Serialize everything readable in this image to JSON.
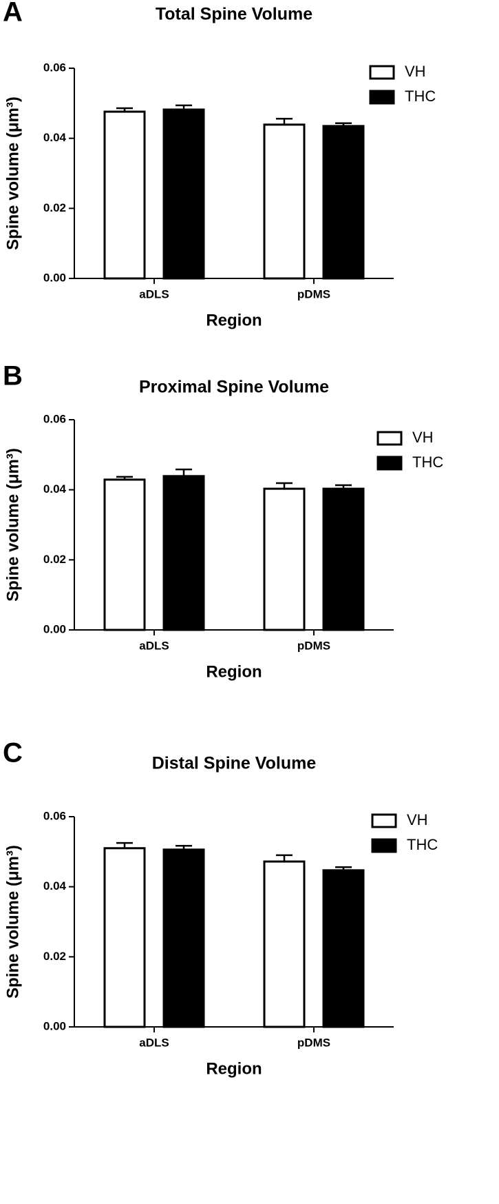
{
  "chart_data": [
    {
      "type": "bar",
      "panel": "A",
      "title": "Total Spine Volume",
      "y_label": "Spine volume (μm³)",
      "x_label": "Region",
      "categories": [
        "aDLS",
        "pDMS"
      ],
      "series": [
        {
          "name": "VH",
          "color": "#ffffff",
          "values": [
            0.0476,
            0.0439
          ],
          "errors": [
            0.001,
            0.0017
          ]
        },
        {
          "name": "THC",
          "color": "#000000",
          "values": [
            0.0482,
            0.0435
          ],
          "errors": [
            0.0012,
            0.0008
          ]
        }
      ],
      "ylim": [
        0,
        0.06
      ],
      "yticks": [
        {
          "value": 0,
          "label": "0.00"
        },
        0.02,
        0.04,
        0.06
      ],
      "legend": "top-right"
    },
    {
      "type": "bar",
      "panel": "B",
      "title": "Proximal  Spine Volume",
      "y_label": "Spine volume (μm³)",
      "x_label": "Region",
      "categories": [
        "aDLS",
        "pDMS"
      ],
      "series": [
        {
          "name": "VH",
          "color": "#ffffff",
          "values": [
            0.0429,
            0.0403
          ],
          "errors": [
            0.0008,
            0.0016
          ]
        },
        {
          "name": "THC",
          "color": "#000000",
          "values": [
            0.0439,
            0.0403
          ],
          "errors": [
            0.0019,
            0.001
          ]
        }
      ],
      "ylim": [
        0,
        0.06
      ],
      "yticks": [
        {
          "value": 0,
          "label": "0.00"
        },
        0.02,
        0.04,
        0.06
      ],
      "legend": "top-right"
    },
    {
      "type": "bar",
      "panel": "C",
      "title": "Distal Spine Volume",
      "y_label": "Spine volume (μm³)",
      "x_label": "Region",
      "categories": [
        "aDLS",
        "pDMS"
      ],
      "series": [
        {
          "name": "VH",
          "color": "#ffffff",
          "values": [
            0.051,
            0.0472
          ],
          "errors": [
            0.0015,
            0.0018
          ]
        },
        {
          "name": "THC",
          "color": "#000000",
          "values": [
            0.0506,
            0.0447
          ],
          "errors": [
            0.0011,
            0.0009
          ]
        }
      ],
      "ylim": [
        0,
        0.06
      ],
      "yticks": [
        {
          "value": 0,
          "label": "0.00"
        },
        0.02,
        0.04,
        0.06
      ],
      "legend": "top-right"
    }
  ]
}
